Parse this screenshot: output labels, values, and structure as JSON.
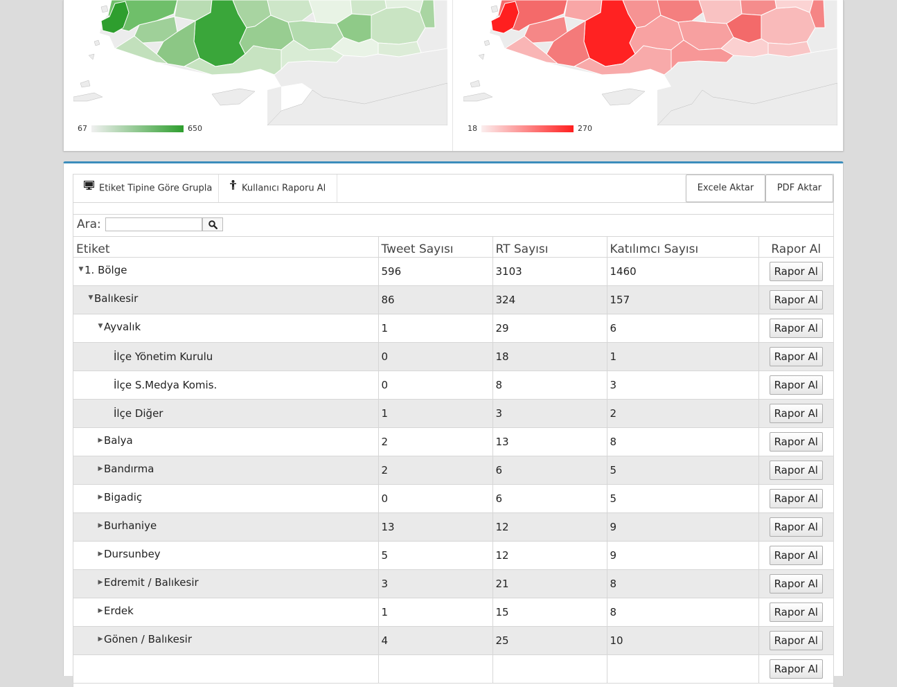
{
  "maps": [
    {
      "name": "tweet-map",
      "color": "#2e9e2e",
      "legend_min": "67",
      "legend_max": "650"
    },
    {
      "name": "rt-map",
      "color": "#ff1f1f",
      "legend_min": "18",
      "legend_max": "270"
    }
  ],
  "toolbar": {
    "group_label": "Etiket Tipine Göre Grupla",
    "user_report_label": "Kullanıcı Raporu Al",
    "excel_label": "Excele Aktar",
    "pdf_label": "PDF Aktar"
  },
  "search": {
    "label": "Ara:",
    "value": "",
    "icon": "search-icon"
  },
  "table": {
    "headers": [
      "Etiket",
      "Tweet Sayısı",
      "RT Sayısı",
      "Katılımcı Sayısı",
      "Rapor Al"
    ],
    "button_label": "Rapor Al",
    "rows": [
      {
        "label": "1. Bölge",
        "level": 0,
        "toggle": "expanded",
        "tweet": "596",
        "rt": "3103",
        "participants": "1460"
      },
      {
        "label": "Balıkesir",
        "level": 1,
        "toggle": "expanded",
        "tweet": "86",
        "rt": "324",
        "participants": "157"
      },
      {
        "label": "Ayvalık",
        "level": 2,
        "toggle": "expanded",
        "tweet": "1",
        "rt": "29",
        "participants": "6"
      },
      {
        "label": "İlçe Yönetim Kurulu",
        "level": 3,
        "toggle": "none",
        "tweet": "0",
        "rt": "18",
        "participants": "1"
      },
      {
        "label": "İlçe S.Medya Komis.",
        "level": 3,
        "toggle": "none",
        "tweet": "0",
        "rt": "8",
        "participants": "3"
      },
      {
        "label": "İlçe Diğer",
        "level": 3,
        "toggle": "none",
        "tweet": "1",
        "rt": "3",
        "participants": "2"
      },
      {
        "label": "Balya",
        "level": 2,
        "toggle": "collapsed",
        "tweet": "2",
        "rt": "13",
        "participants": "8"
      },
      {
        "label": "Bandırma",
        "level": 2,
        "toggle": "collapsed",
        "tweet": "2",
        "rt": "6",
        "participants": "5"
      },
      {
        "label": "Bigadiç",
        "level": 2,
        "toggle": "collapsed",
        "tweet": "0",
        "rt": "6",
        "participants": "5"
      },
      {
        "label": "Burhaniye",
        "level": 2,
        "toggle": "collapsed",
        "tweet": "13",
        "rt": "12",
        "participants": "9"
      },
      {
        "label": "Dursunbey",
        "level": 2,
        "toggle": "collapsed",
        "tweet": "5",
        "rt": "12",
        "participants": "9"
      },
      {
        "label": "Edremit / Balıkesir",
        "level": 2,
        "toggle": "collapsed",
        "tweet": "3",
        "rt": "21",
        "participants": "8"
      },
      {
        "label": "Erdek",
        "level": 2,
        "toggle": "collapsed",
        "tweet": "1",
        "rt": "15",
        "participants": "8"
      },
      {
        "label": "Gönen / Balıkesir",
        "level": 2,
        "toggle": "collapsed",
        "tweet": "4",
        "rt": "25",
        "participants": "10"
      },
      {
        "label": "",
        "level": 2,
        "toggle": "none",
        "tweet": "",
        "rt": "",
        "participants": ""
      }
    ]
  }
}
